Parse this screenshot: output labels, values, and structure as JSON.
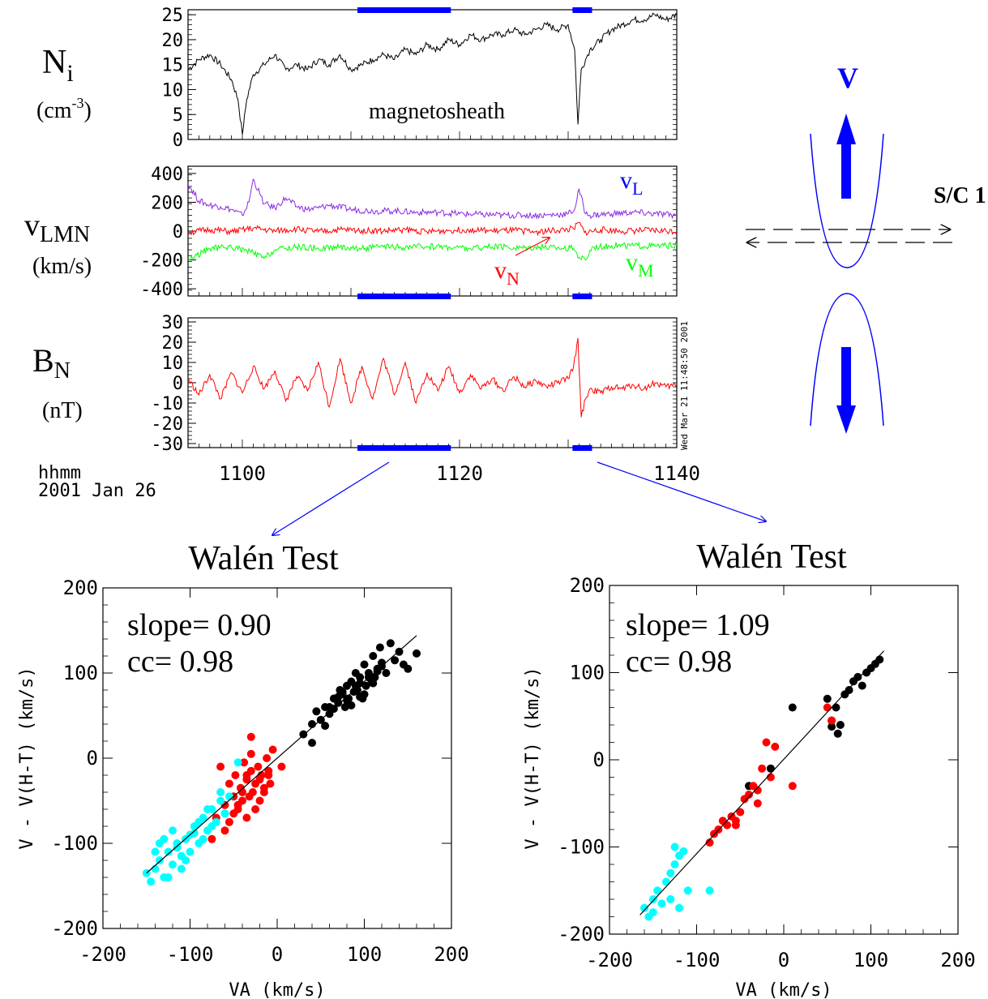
{
  "figure": {
    "date_label": "hhmm",
    "date_value": "2001 Jan 26",
    "stamp": "Wed Mar 21 11:48:50 2001",
    "x_ticks": [
      "1100",
      "1120",
      "1140"
    ],
    "colors": {
      "blue": "#0000ff",
      "red": "#ff0000",
      "green": "#00ff00",
      "purple": "#8a2be2",
      "cyan": "#00ffff",
      "black": "#000000"
    }
  },
  "panels": {
    "ni": {
      "label_main": "N",
      "label_sub": "i",
      "unit_pre": "(cm",
      "unit_sup": "-3",
      "unit_post": ")",
      "annotation": "magnetosheath",
      "y_ticks": [
        "25",
        "20",
        "15",
        "10",
        "5",
        "0"
      ]
    },
    "vlmn": {
      "label_main": "v",
      "label_sub": "LMN",
      "unit": "(km/s)",
      "y_ticks": [
        "400",
        "200",
        "0",
        "-200",
        "-400"
      ],
      "vL": "v",
      "vL_sub": "L",
      "vN": "v",
      "vN_sub": "N",
      "vM": "v",
      "vM_sub": "M"
    },
    "bn": {
      "label_main": "B",
      "label_sub": "N",
      "unit": "(nT)",
      "y_ticks": [
        "30",
        "20",
        "10",
        "0",
        "-10",
        "-20",
        "-30"
      ]
    }
  },
  "diagram": {
    "v_label": "V",
    "sc_label": "S/C 1"
  },
  "chart_data": [
    {
      "type": "line",
      "title": "",
      "ylabel": "Ni (cm-3)",
      "x_range": [
        1095,
        1140
      ],
      "ylim": [
        0,
        26
      ],
      "highlight_intervals": [
        [
          1110.6,
          1119.2
        ],
        [
          1130.4,
          1132.2
        ]
      ],
      "series": [
        {
          "name": "Ni",
          "x": [
            1095,
            1096,
            1097,
            1098,
            1099,
            1099.6,
            1100,
            1100.4,
            1101,
            1102,
            1103,
            1104,
            1105,
            1106,
            1107,
            1108,
            1109,
            1110,
            1111,
            1112,
            1113,
            1114,
            1115,
            1116,
            1117,
            1118,
            1119,
            1120,
            1121,
            1122,
            1123,
            1124,
            1125,
            1126,
            1127,
            1128,
            1129,
            1130,
            1130.6,
            1130.9,
            1131.2,
            1131.6,
            1132,
            1133,
            1134,
            1135,
            1136,
            1137,
            1138,
            1139,
            1140
          ],
          "y": [
            14,
            16,
            17,
            15,
            12,
            8,
            1,
            8,
            13,
            15,
            17,
            14,
            15,
            14,
            16,
            15,
            17,
            14,
            15,
            16,
            17,
            16,
            18,
            17,
            19,
            18,
            20,
            19,
            21,
            20,
            21,
            21,
            22,
            21,
            22,
            23,
            22,
            23,
            18,
            3,
            14,
            16,
            18,
            20,
            22,
            23,
            24,
            24,
            25,
            24,
            25
          ]
        }
      ]
    },
    {
      "type": "line",
      "title": "",
      "ylabel": "vLMN (km/s)",
      "x_range": [
        1095,
        1140
      ],
      "ylim": [
        -450,
        450
      ],
      "highlight_intervals": [
        [
          1110.6,
          1119.2
        ],
        [
          1130.4,
          1132.2
        ]
      ],
      "series": [
        {
          "name": "vL",
          "x": [
            1095,
            1096,
            1097,
            1098,
            1099,
            1100,
            1100.6,
            1101,
            1101.6,
            1102,
            1103,
            1104,
            1105,
            1106,
            1107,
            1108,
            1110,
            1112,
            1114,
            1116,
            1118,
            1120,
            1122,
            1124,
            1126,
            1128,
            1130,
            1130.6,
            1131,
            1131.6,
            1132,
            1134,
            1136,
            1138,
            1140
          ],
          "y": [
            330,
            210,
            180,
            170,
            150,
            110,
            200,
            360,
            260,
            190,
            160,
            230,
            170,
            150,
            160,
            180,
            150,
            140,
            140,
            130,
            130,
            120,
            115,
            110,
            110,
            110,
            120,
            150,
            290,
            120,
            110,
            120,
            130,
            120,
            110
          ]
        },
        {
          "name": "vN",
          "x": [
            1095,
            1097,
            1099,
            1101,
            1103,
            1105,
            1107,
            1109,
            1111,
            1113,
            1115,
            1117,
            1119,
            1121,
            1123,
            1125,
            1127,
            1129,
            1130.5,
            1131,
            1131.5,
            1133,
            1135,
            1137,
            1140
          ],
          "y": [
            -10,
            10,
            -5,
            20,
            0,
            15,
            -5,
            10,
            5,
            0,
            10,
            -5,
            5,
            10,
            0,
            5,
            -5,
            5,
            15,
            60,
            -10,
            10,
            0,
            5,
            0
          ]
        },
        {
          "name": "vM",
          "x": [
            1095,
            1097,
            1099,
            1101,
            1102,
            1103,
            1105,
            1107,
            1109,
            1111,
            1113,
            1115,
            1117,
            1119,
            1121,
            1123,
            1125,
            1127,
            1129,
            1130.5,
            1131,
            1131.6,
            1132.2,
            1134,
            1136,
            1138,
            1140
          ],
          "y": [
            -200,
            -120,
            -110,
            -150,
            -190,
            -130,
            -110,
            -120,
            -110,
            -120,
            -110,
            -115,
            -105,
            -110,
            -120,
            -110,
            -115,
            -110,
            -115,
            -120,
            -180,
            -200,
            -110,
            -100,
            -100,
            -105,
            -100
          ]
        }
      ]
    },
    {
      "type": "line",
      "title": "",
      "ylabel": "BN (nT)",
      "x_range": [
        1095,
        1140
      ],
      "ylim": [
        -32,
        32
      ],
      "highlight_intervals": [
        [
          1110.6,
          1119.2
        ],
        [
          1130.4,
          1132.2
        ]
      ],
      "series": [
        {
          "name": "BN",
          "x": [
            1095,
            1096,
            1097,
            1098,
            1099,
            1100,
            1101,
            1102,
            1103,
            1104,
            1105,
            1106,
            1107,
            1108,
            1109,
            1110,
            1111,
            1112,
            1113,
            1114,
            1115,
            1116,
            1117,
            1118,
            1119,
            1120,
            1121,
            1122,
            1123,
            1124,
            1125,
            1126,
            1127,
            1128,
            1129,
            1130,
            1130.5,
            1130.9,
            1131.2,
            1131.6,
            1132,
            1133,
            1134,
            1135,
            1136,
            1137,
            1138,
            1139,
            1140
          ],
          "y": [
            2,
            -6,
            4,
            -8,
            5,
            -5,
            8,
            -3,
            6,
            -9,
            3,
            -4,
            10,
            -12,
            12,
            -10,
            8,
            -8,
            12,
            -6,
            10,
            -10,
            5,
            -4,
            8,
            -5,
            4,
            -3,
            2,
            -4,
            3,
            -2,
            1,
            -2,
            0,
            2,
            8,
            22,
            -17,
            -8,
            -3,
            -5,
            -2,
            -3,
            -1,
            -3,
            0,
            -2,
            -1
          ]
        }
      ]
    },
    {
      "type": "scatter",
      "title": "Walén Test",
      "xlabel": "VA  (km/s)",
      "ylabel": "V - V(H-T)  (km/s)",
      "xlim": [
        -200,
        200
      ],
      "ylim": [
        -200,
        200
      ],
      "x_ticks": [
        "-200",
        "-100",
        "0",
        "100",
        "200"
      ],
      "y_ticks": [
        "200",
        "100",
        "0",
        "-100",
        "-200"
      ],
      "annotation_slope": "slope= 0.90",
      "annotation_cc": "cc= 0.98",
      "fit_line": {
        "x": [
          -150,
          160
        ],
        "y": [
          -135,
          144
        ]
      },
      "series": [
        {
          "name": "",
          "color": "black",
          "x": [
            30,
            40,
            45,
            50,
            55,
            60,
            65,
            70,
            72,
            75,
            78,
            80,
            82,
            85,
            88,
            90,
            92,
            95,
            98,
            100,
            102,
            105,
            108,
            110,
            112,
            115,
            118,
            120,
            125,
            130,
            135,
            140,
            145,
            150,
            160,
            60,
            70,
            80,
            90,
            100,
            110,
            85,
            95,
            105,
            115,
            40,
            55,
            65,
            75,
            95,
            120
          ],
          "y": [
            28,
            40,
            55,
            45,
            60,
            52,
            70,
            65,
            80,
            75,
            60,
            85,
            70,
            90,
            78,
            100,
            80,
            95,
            70,
            110,
            85,
            100,
            92,
            120,
            95,
            105,
            130,
            112,
            100,
            135,
            115,
            125,
            110,
            105,
            123,
            60,
            72,
            68,
            85,
            75,
            88,
            62,
            72,
            95,
            102,
            18,
            38,
            58,
            78,
            88,
            108
          ]
        },
        {
          "name": "",
          "color": "red",
          "x": [
            -75,
            -70,
            -65,
            -60,
            -55,
            -50,
            -48,
            -45,
            -42,
            -40,
            -38,
            -35,
            -32,
            -30,
            -28,
            -25,
            -22,
            -20,
            -18,
            -15,
            -12,
            -10,
            -8,
            -5,
            -50,
            -45,
            -40,
            -35,
            -30,
            -25,
            -20,
            -60,
            -55,
            -35,
            -30,
            -15,
            -10,
            5
          ],
          "y": [
            -95,
            -70,
            -10,
            -55,
            -30,
            -45,
            -20,
            -60,
            -35,
            -50,
            -5,
            -25,
            -45,
            -15,
            -40,
            -30,
            -10,
            -50,
            -20,
            -35,
            0,
            -15,
            -30,
            10,
            -65,
            -55,
            -40,
            -20,
            5,
            -60,
            -25,
            -85,
            -75,
            -70,
            25,
            -40,
            -20,
            -10
          ]
        },
        {
          "name": "",
          "color": "cyan",
          "x": [
            -150,
            -145,
            -140,
            -135,
            -130,
            -125,
            -120,
            -115,
            -110,
            -105,
            -100,
            -95,
            -90,
            -85,
            -80,
            -75,
            -70,
            -65,
            -60,
            -55,
            -140,
            -130,
            -120,
            -110,
            -100,
            -90,
            -80,
            -125,
            -115,
            -105,
            -95,
            -135,
            -85,
            -75,
            -65,
            -45
          ],
          "y": [
            -135,
            -145,
            -130,
            -120,
            -140,
            -110,
            -125,
            -100,
            -115,
            -95,
            -110,
            -80,
            -100,
            -70,
            -85,
            -60,
            -75,
            -50,
            -65,
            -45,
            -110,
            -95,
            -85,
            -130,
            -90,
            -75,
            -60,
            -140,
            -105,
            -120,
            -88,
            -100,
            -95,
            -80,
            -40,
            -5
          ]
        }
      ]
    },
    {
      "type": "scatter",
      "title": "Walén Test",
      "xlabel": "VA  (km/s)",
      "ylabel": "V - V(H-T)  (km/s)",
      "xlim": [
        -200,
        200
      ],
      "ylim": [
        -200,
        200
      ],
      "x_ticks": [
        "-200",
        "-100",
        "0",
        "100",
        "200"
      ],
      "y_ticks": [
        "200",
        "100",
        "0",
        "-100",
        "-200"
      ],
      "annotation_slope": "slope= 1.09",
      "annotation_cc": "cc= 0.98",
      "fit_line": {
        "x": [
          -165,
          115
        ],
        "y": [
          -178,
          125
        ]
      },
      "series": [
        {
          "name": "",
          "color": "black",
          "x": [
            10,
            50,
            55,
            60,
            62,
            65,
            70,
            80,
            85,
            90,
            95,
            100,
            105,
            110,
            55,
            75,
            -15,
            -40
          ],
          "y": [
            60,
            70,
            45,
            60,
            30,
            40,
            75,
            90,
            95,
            85,
            100,
            105,
            110,
            115,
            38,
            80,
            -10,
            -30
          ]
        },
        {
          "name": "",
          "color": "red",
          "x": [
            -85,
            -80,
            -75,
            -70,
            -65,
            -60,
            -55,
            -50,
            -45,
            -40,
            -35,
            -30,
            -25,
            -20,
            -15,
            -10,
            10,
            50,
            55,
            -30,
            -55
          ],
          "y": [
            -95,
            -85,
            -80,
            -70,
            -75,
            -65,
            -70,
            -60,
            -45,
            -40,
            -30,
            -35,
            -10,
            20,
            -20,
            15,
            -30,
            60,
            45,
            -50,
            -75
          ]
        },
        {
          "name": "",
          "color": "cyan",
          "x": [
            -160,
            -155,
            -150,
            -145,
            -140,
            -135,
            -130,
            -125,
            -120,
            -115,
            -110,
            -130,
            -120,
            -150,
            -85,
            -125
          ],
          "y": [
            -170,
            -180,
            -160,
            -150,
            -165,
            -140,
            -130,
            -120,
            -110,
            -105,
            -150,
            -160,
            -170,
            -175,
            -150,
            -100
          ]
        }
      ]
    }
  ]
}
